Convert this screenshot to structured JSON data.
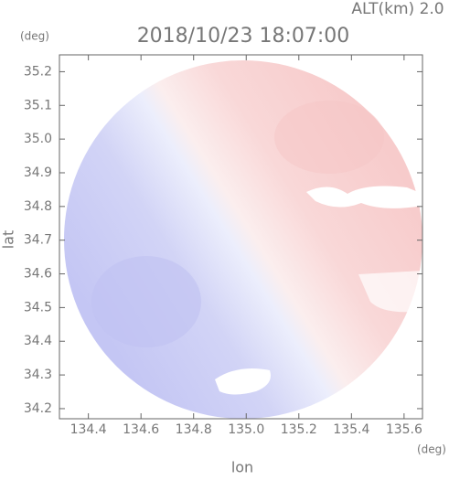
{
  "chart_data": {
    "type": "radar-map",
    "title": "2018/10/23 18:07:00",
    "subtitle": "ALT(km) 2.0",
    "x_label": "lon",
    "y_label": "lat",
    "x_unit": "(deg)",
    "y_unit": "(deg)",
    "xlim": [
      134.29,
      135.67
    ],
    "xticks": [
      134.4,
      134.6,
      134.8,
      {
        "value": 135.0,
        "label": "135.0"
      },
      135.2,
      135.4,
      135.6
    ],
    "ylim": [
      34.17,
      35.25
    ],
    "yticks": [
      34.2,
      34.3,
      34.4,
      34.5,
      34.6,
      34.7,
      34.8,
      34.9,
      {
        "value": 35.0,
        "label": "35.0"
      },
      35.1,
      35.2
    ]
  }
}
